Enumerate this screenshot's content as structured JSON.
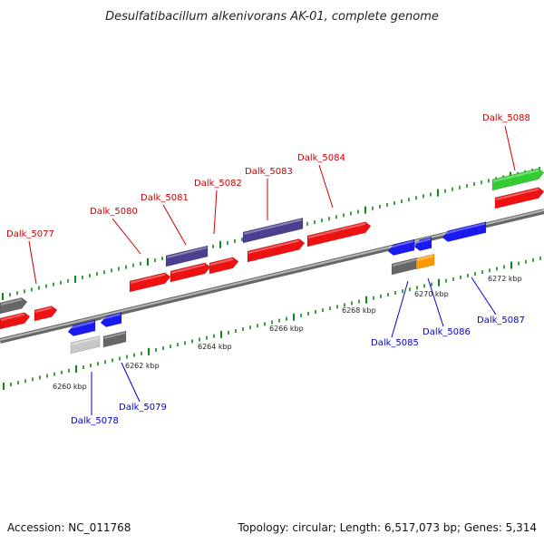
{
  "title": "Desulfatibacillum alkenivorans AK-01, complete genome",
  "footer": {
    "accession": "Accession: NC_011768",
    "topology": "Topology: circular; Length: 6,517,073 bp; Genes: 5,314"
  },
  "colors": {
    "forward_label": "#cc0000",
    "reverse_label": "#0000cc",
    "backbone": "#888888",
    "tick": "#118811",
    "red_gene": "#ee1111",
    "blue_gene": "#1a1aee",
    "purple_gene": "#4b3f8f",
    "gray_gene": "#666666",
    "lightgray_gene": "#c8c8c8",
    "green_gene": "#33cc33",
    "orange_gene": "#ff9900"
  },
  "kbp_labels": [
    "6260 kbp",
    "6262 kbp",
    "6264 kbp",
    "6266 kbp",
    "6268 kbp",
    "6270 kbp",
    "6272 kbp"
  ],
  "forward_genes": [
    "Dalk_5077",
    "Dalk_5080",
    "Dalk_5081",
    "Dalk_5082",
    "Dalk_5083",
    "Dalk_5084",
    "Dalk_5088"
  ],
  "reverse_genes": [
    "Dalk_5078",
    "Dalk_5079",
    "Dalk_5085",
    "Dalk_5086",
    "Dalk_5087"
  ]
}
